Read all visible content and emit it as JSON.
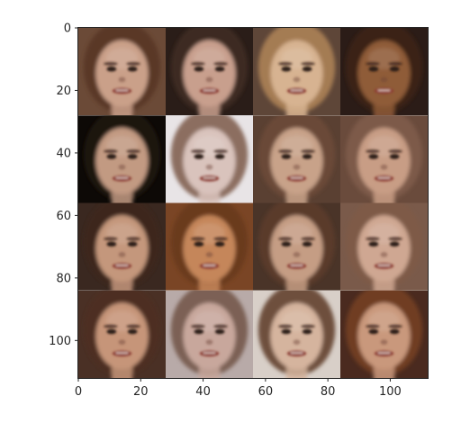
{
  "figure": {
    "type": "image-grid",
    "grid": {
      "rows": 4,
      "cols": 4
    },
    "x_ticks": [
      "0",
      "20",
      "40",
      "60",
      "80",
      "100"
    ],
    "y_ticks": [
      "0",
      "20",
      "40",
      "60",
      "80",
      "100"
    ],
    "x_tick_values": [
      0,
      20,
      40,
      60,
      80,
      100
    ],
    "y_tick_values": [
      0,
      20,
      40,
      60,
      80,
      100
    ],
    "axis_range": {
      "x": [
        0,
        112
      ],
      "y": [
        112,
        0
      ]
    },
    "cells": [
      {
        "bg": "#6b4a37",
        "skin": "#caa089",
        "hair": "#5a3827"
      },
      {
        "bg": "#2a1d18",
        "skin": "#c89f8d",
        "hair": "#3d2a22"
      },
      {
        "bg": "#5e4638",
        "skin": "#d7b391",
        "hair": "#a47c52"
      },
      {
        "bg": "#2b1c17",
        "skin": "#8f5b38",
        "hair": "#3a2418"
      },
      {
        "bg": "#0d0906",
        "skin": "#c29a82",
        "hair": "#1c120f"
      },
      {
        "bg": "#e8e4e6",
        "skin": "#d9c3bc",
        "hair": "#8c6e61"
      },
      {
        "bg": "#5a4032",
        "skin": "#c8a289",
        "hair": "#6b4a37"
      },
      {
        "bg": "#6a4b3c",
        "skin": "#c89d85",
        "hair": "#7d5a48"
      },
      {
        "bg": "#3a2820",
        "skin": "#c4977c",
        "hair": "#3d261b"
      },
      {
        "bg": "#7a4525",
        "skin": "#c5865a",
        "hair": "#6a3a1f"
      },
      {
        "bg": "#4a3428",
        "skin": "#c59d84",
        "hair": "#5a3a29"
      },
      {
        "bg": "#7a5a4a",
        "skin": "#cfa792",
        "hair": "#7e5a47"
      },
      {
        "bg": "#4a3025",
        "skin": "#c69579",
        "hair": "#4e2f21"
      },
      {
        "bg": "#b8aaa8",
        "skin": "#c8a79c",
        "hair": "#7b6155"
      },
      {
        "bg": "#d8cfc8",
        "skin": "#d5b49e",
        "hair": "#6e4f3c"
      },
      {
        "bg": "#4a2a1f",
        "skin": "#c9987c",
        "hair": "#6f3c24"
      }
    ]
  }
}
